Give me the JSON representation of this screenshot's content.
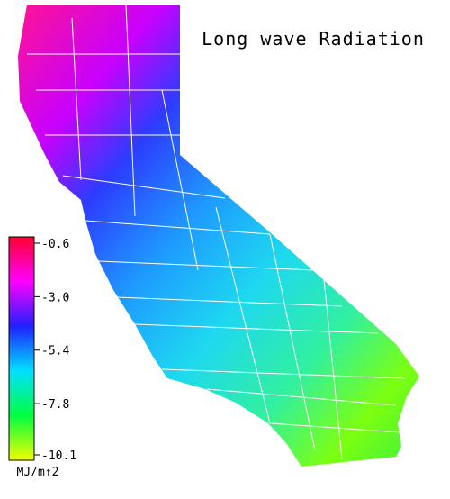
{
  "map": {
    "title": "Long wave Radiation",
    "colorbar": {
      "range": [
        -0.6,
        -10.1
      ],
      "ticks": [
        -0.6,
        {
          "value": -3,
          "label": "-3.0"
        },
        -5.4,
        -7.8,
        -10.1
      ],
      "unit": "MJ/m↑2"
    }
  }
}
